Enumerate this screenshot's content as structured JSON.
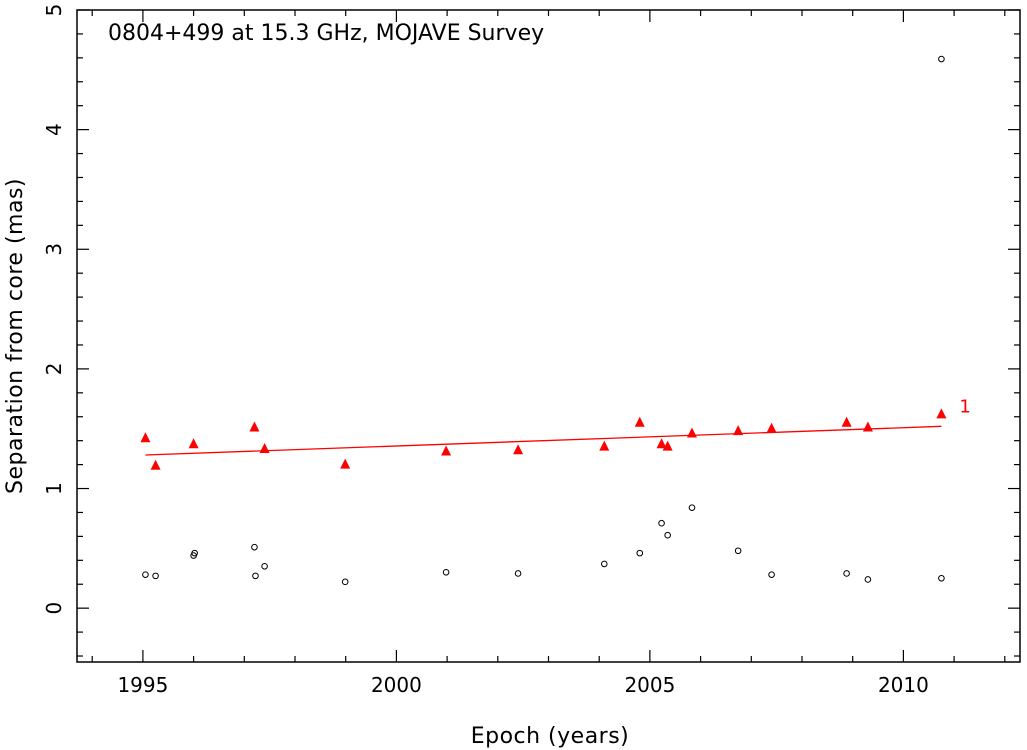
{
  "chart_data": {
    "type": "scatter",
    "title": "0804+499 at 15.3 GHz, MOJAVE Survey",
    "xlabel": "Epoch (years)",
    "ylabel": "Separation from core (mas)",
    "xlim": [
      1993.7,
      2012.3
    ],
    "ylim": [
      -0.45,
      5.0
    ],
    "x_ticks": [
      1995,
      2000,
      2005,
      2010
    ],
    "x_tick_labels": [
      "1995",
      "2000",
      "2005",
      "2010"
    ],
    "y_ticks": [
      0,
      1,
      2,
      3,
      4,
      5
    ],
    "y_tick_labels": [
      "0",
      "1",
      "2",
      "3",
      "4",
      "5"
    ],
    "grid": false,
    "colors": {
      "component": "#ff0000",
      "other": "#000000",
      "axes": "#000000"
    },
    "series": [
      {
        "name": "1",
        "marker": "triangle",
        "color": "#ff0000",
        "x": [
          1995.05,
          1995.25,
          1996.0,
          1997.2,
          1997.4,
          1998.99,
          2000.98,
          2002.4,
          2004.1,
          2004.8,
          2005.23,
          2005.35,
          2005.83,
          2006.74,
          2007.4,
          2008.88,
          2009.3,
          2010.75
        ],
        "y": [
          1.42,
          1.19,
          1.37,
          1.51,
          1.33,
          1.2,
          1.31,
          1.32,
          1.35,
          1.55,
          1.37,
          1.35,
          1.46,
          1.48,
          1.5,
          1.55,
          1.51,
          1.62
        ],
        "fit": {
          "x": [
            1995.05,
            2010.75
          ],
          "y": [
            1.28,
            1.52
          ]
        }
      },
      {
        "name": "",
        "marker": "circle",
        "color": "#000000",
        "x": [
          1995.05,
          1995.25,
          1996.0,
          1996.02,
          1997.2,
          1997.22,
          1997.4,
          1998.99,
          2000.98,
          2002.4,
          2004.1,
          2004.8,
          2005.23,
          2005.35,
          2005.83,
          2006.74,
          2007.4,
          2008.88,
          2009.3,
          2010.75,
          2010.75
        ],
        "y": [
          0.28,
          0.27,
          0.44,
          0.46,
          0.51,
          0.27,
          0.35,
          0.22,
          0.3,
          0.29,
          0.37,
          0.46,
          0.71,
          0.61,
          0.84,
          0.48,
          0.28,
          0.29,
          0.24,
          0.25,
          4.59
        ]
      }
    ]
  }
}
